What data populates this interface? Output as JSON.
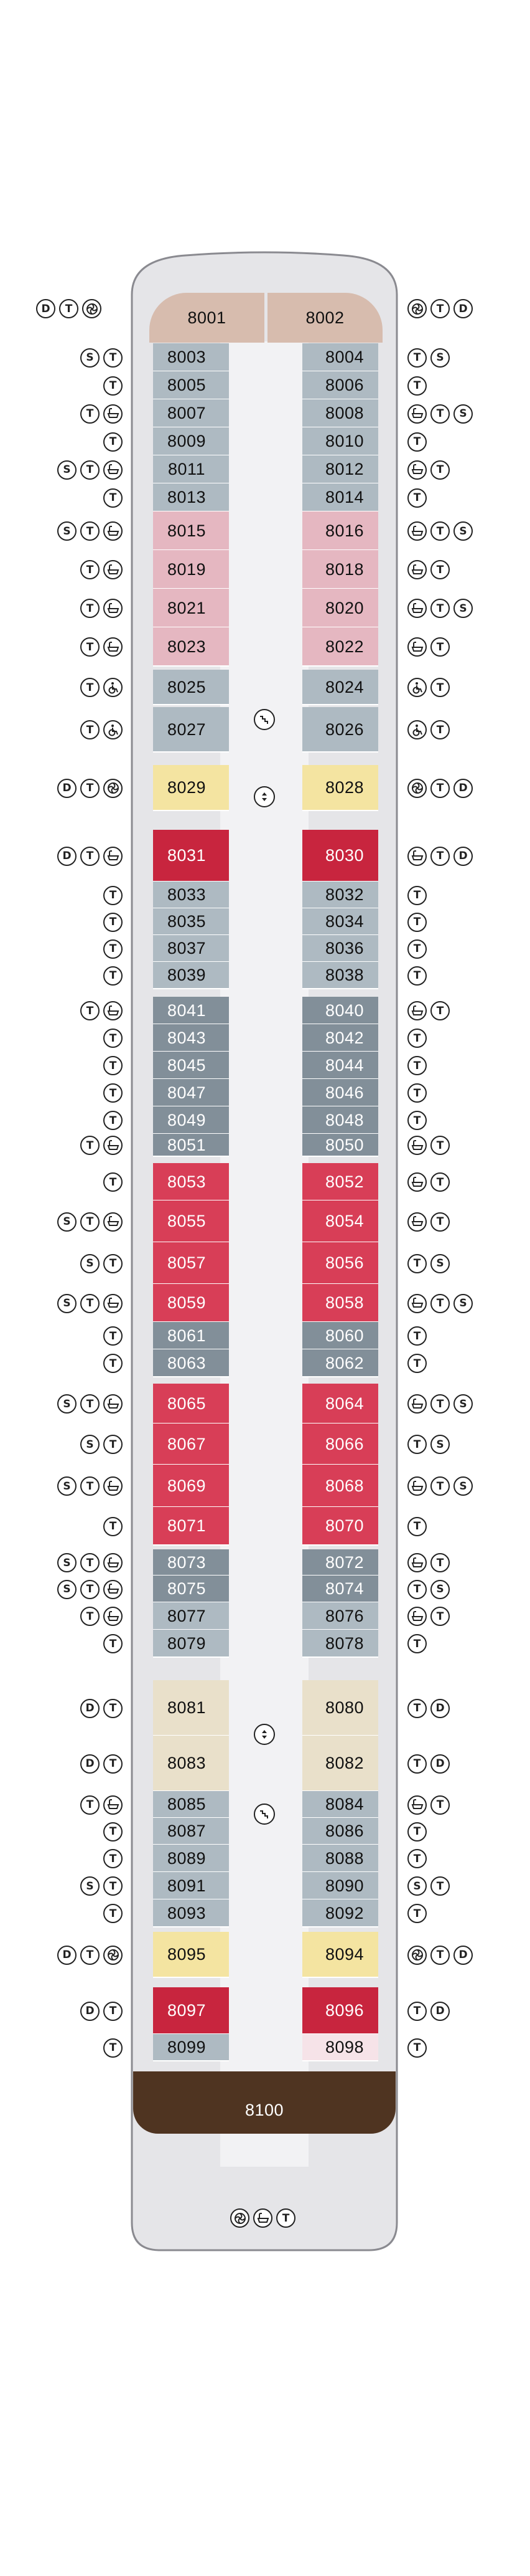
{
  "colors": {
    "hull_fill": "#e5e5e8",
    "hull_outline": "#8a8a90",
    "corridor": "#f2f2f4",
    "owners_suite": "#d7bcae",
    "superior_veranda": "#aebac2",
    "deluxe_veranda": "#e5b7c1",
    "penthouse": "#f4e4a1",
    "concierge": "#c8253e",
    "veranda_gray": "#828f99",
    "veranda_red": "#d83e57",
    "sand": "#e9e0ca",
    "light_pink": "#f6e3e8",
    "brown": "#4f3421",
    "text_dark": "#111111",
    "text_light": "#ffffff"
  },
  "icon_legend": {
    "D": "D",
    "S": "S",
    "T": "T"
  },
  "cabins_left": [
    {
      "num": "8003",
      "color": "superior_veranda",
      "icons": [
        "S",
        "T"
      ]
    },
    {
      "num": "8005",
      "color": "superior_veranda",
      "icons": [
        "T"
      ]
    },
    {
      "num": "8007",
      "color": "superior_veranda",
      "icons": [
        "T",
        "bathtub"
      ]
    },
    {
      "num": "8009",
      "color": "superior_veranda",
      "icons": [
        "T"
      ]
    },
    {
      "num": "8011",
      "color": "superior_veranda",
      "icons": [
        "S",
        "T",
        "bathtub"
      ]
    },
    {
      "num": "8013",
      "color": "superior_veranda",
      "icons": [
        "T"
      ]
    },
    {
      "num": "8015",
      "color": "deluxe_veranda",
      "icons": [
        "S",
        "T",
        "bathtub"
      ]
    },
    {
      "num": "8019",
      "color": "deluxe_veranda",
      "icons": [
        "T",
        "bathtub"
      ]
    },
    {
      "num": "8021",
      "color": "deluxe_veranda",
      "icons": [
        "T",
        "bathtub"
      ]
    },
    {
      "num": "8023",
      "color": "deluxe_veranda",
      "icons": [
        "T",
        "bathtub"
      ]
    },
    {
      "num": "8025",
      "color": "superior_veranda",
      "icons": [
        "T",
        "wheelchair"
      ]
    },
    {
      "num": "8027",
      "color": "superior_veranda",
      "icons": [
        "T",
        "wheelchair"
      ]
    },
    {
      "num": "8029",
      "color": "penthouse",
      "icons": [
        "D",
        "T",
        "shower"
      ]
    },
    {
      "num": "8031",
      "color": "concierge",
      "icons": [
        "D",
        "T",
        "bathtub"
      ]
    },
    {
      "num": "8033",
      "color": "superior_veranda",
      "icons": [
        "T"
      ]
    },
    {
      "num": "8035",
      "color": "superior_veranda",
      "icons": [
        "T"
      ]
    },
    {
      "num": "8037",
      "color": "superior_veranda",
      "icons": [
        "T"
      ]
    },
    {
      "num": "8039",
      "color": "superior_veranda",
      "icons": [
        "T"
      ]
    },
    {
      "num": "8041",
      "color": "veranda_gray",
      "icons": [
        "T",
        "bathtub"
      ]
    },
    {
      "num": "8043",
      "color": "veranda_gray",
      "icons": [
        "T"
      ]
    },
    {
      "num": "8045",
      "color": "veranda_gray",
      "icons": [
        "T"
      ]
    },
    {
      "num": "8047",
      "color": "veranda_gray",
      "icons": [
        "T"
      ]
    },
    {
      "num": "8049",
      "color": "veranda_gray",
      "icons": [
        "T"
      ]
    },
    {
      "num": "8051",
      "color": "veranda_gray",
      "icons": [
        "T",
        "bathtub"
      ]
    },
    {
      "num": "8053",
      "color": "veranda_red",
      "icons": [
        "T"
      ]
    },
    {
      "num": "8055",
      "color": "veranda_red",
      "icons": [
        "S",
        "T",
        "bathtub"
      ]
    },
    {
      "num": "8057",
      "color": "veranda_red",
      "icons": [
        "S",
        "T"
      ]
    },
    {
      "num": "8059",
      "color": "veranda_red",
      "icons": [
        "S",
        "T",
        "bathtub"
      ]
    },
    {
      "num": "8061",
      "color": "veranda_gray",
      "icons": [
        "T"
      ]
    },
    {
      "num": "8063",
      "color": "veranda_gray",
      "icons": [
        "T"
      ]
    },
    {
      "num": "8065",
      "color": "veranda_red",
      "icons": [
        "S",
        "T",
        "bathtub"
      ]
    },
    {
      "num": "8067",
      "color": "veranda_red",
      "icons": [
        "S",
        "T"
      ]
    },
    {
      "num": "8069",
      "color": "veranda_red",
      "icons": [
        "S",
        "T",
        "bathtub"
      ]
    },
    {
      "num": "8071",
      "color": "veranda_red",
      "icons": [
        "T"
      ]
    },
    {
      "num": "8073",
      "color": "veranda_gray",
      "icons": [
        "S",
        "T",
        "bathtub"
      ]
    },
    {
      "num": "8075",
      "color": "veranda_gray",
      "icons": [
        "S",
        "T",
        "bathtub"
      ]
    },
    {
      "num": "8077",
      "color": "superior_veranda",
      "icons": [
        "T",
        "bathtub"
      ]
    },
    {
      "num": "8079",
      "color": "superior_veranda",
      "icons": [
        "T"
      ]
    },
    {
      "num": "8081",
      "color": "sand",
      "icons": [
        "D",
        "T"
      ]
    },
    {
      "num": "8083",
      "color": "sand",
      "icons": [
        "D",
        "T"
      ]
    },
    {
      "num": "8085",
      "color": "superior_veranda",
      "icons": [
        "T",
        "bathtub"
      ]
    },
    {
      "num": "8087",
      "color": "superior_veranda",
      "icons": [
        "T"
      ]
    },
    {
      "num": "8089",
      "color": "superior_veranda",
      "icons": [
        "T"
      ]
    },
    {
      "num": "8091",
      "color": "superior_veranda",
      "icons": [
        "S",
        "T"
      ]
    },
    {
      "num": "8093",
      "color": "superior_veranda",
      "icons": [
        "T"
      ]
    },
    {
      "num": "8095",
      "color": "penthouse",
      "icons": [
        "D",
        "T",
        "shower"
      ]
    },
    {
      "num": "8097",
      "color": "concierge",
      "icons": [
        "D",
        "T"
      ]
    },
    {
      "num": "8099",
      "color": "superior_veranda",
      "icons": [
        "T"
      ]
    }
  ],
  "cabins_right": [
    {
      "num": "8004",
      "color": "superior_veranda",
      "icons": [
        "T",
        "S"
      ]
    },
    {
      "num": "8006",
      "color": "superior_veranda",
      "icons": [
        "T"
      ]
    },
    {
      "num": "8008",
      "color": "superior_veranda",
      "icons": [
        "bathtub",
        "T",
        "S"
      ]
    },
    {
      "num": "8010",
      "color": "superior_veranda",
      "icons": [
        "T"
      ]
    },
    {
      "num": "8012",
      "color": "superior_veranda",
      "icons": [
        "bathtub",
        "T"
      ]
    },
    {
      "num": "8014",
      "color": "superior_veranda",
      "icons": [
        "T"
      ]
    },
    {
      "num": "8016",
      "color": "deluxe_veranda",
      "icons": [
        "bathtub",
        "T",
        "S"
      ]
    },
    {
      "num": "8018",
      "color": "deluxe_veranda",
      "icons": [
        "bathtub",
        "T"
      ]
    },
    {
      "num": "8020",
      "color": "deluxe_veranda",
      "icons": [
        "bathtub",
        "T",
        "S"
      ]
    },
    {
      "num": "8022",
      "color": "deluxe_veranda",
      "icons": [
        "bathtub",
        "T"
      ]
    },
    {
      "num": "8024",
      "color": "superior_veranda",
      "icons": [
        "wheelchair",
        "T"
      ]
    },
    {
      "num": "8026",
      "color": "superior_veranda",
      "icons": [
        "wheelchair",
        "T"
      ]
    },
    {
      "num": "8028",
      "color": "penthouse",
      "icons": [
        "shower",
        "T",
        "D"
      ]
    },
    {
      "num": "8030",
      "color": "concierge",
      "icons": [
        "bathtub",
        "T",
        "D"
      ]
    },
    {
      "num": "8032",
      "color": "superior_veranda",
      "icons": [
        "T"
      ]
    },
    {
      "num": "8034",
      "color": "superior_veranda",
      "icons": [
        "T"
      ]
    },
    {
      "num": "8036",
      "color": "superior_veranda",
      "icons": [
        "T"
      ]
    },
    {
      "num": "8038",
      "color": "superior_veranda",
      "icons": [
        "T"
      ]
    },
    {
      "num": "8040",
      "color": "veranda_gray",
      "icons": [
        "bathtub",
        "T"
      ]
    },
    {
      "num": "8042",
      "color": "veranda_gray",
      "icons": [
        "T"
      ]
    },
    {
      "num": "8044",
      "color": "veranda_gray",
      "icons": [
        "T"
      ]
    },
    {
      "num": "8046",
      "color": "veranda_gray",
      "icons": [
        "T"
      ]
    },
    {
      "num": "8048",
      "color": "veranda_gray",
      "icons": [
        "T"
      ]
    },
    {
      "num": "8050",
      "color": "veranda_gray",
      "icons": [
        "bathtub",
        "T"
      ]
    },
    {
      "num": "8052",
      "color": "veranda_red",
      "icons": [
        "bathtub",
        "T"
      ]
    },
    {
      "num": "8054",
      "color": "veranda_red",
      "icons": [
        "bathtub",
        "T"
      ]
    },
    {
      "num": "8056",
      "color": "veranda_red",
      "icons": [
        "T",
        "S"
      ]
    },
    {
      "num": "8058",
      "color": "veranda_red",
      "icons": [
        "bathtub",
        "T",
        "S"
      ]
    },
    {
      "num": "8060",
      "color": "veranda_gray",
      "icons": [
        "T"
      ]
    },
    {
      "num": "8062",
      "color": "veranda_gray",
      "icons": [
        "T"
      ]
    },
    {
      "num": "8064",
      "color": "veranda_red",
      "icons": [
        "bathtub",
        "T",
        "S"
      ]
    },
    {
      "num": "8066",
      "color": "veranda_red",
      "icons": [
        "T",
        "S"
      ]
    },
    {
      "num": "8068",
      "color": "veranda_red",
      "icons": [
        "bathtub",
        "T",
        "S"
      ]
    },
    {
      "num": "8070",
      "color": "veranda_red",
      "icons": [
        "T"
      ]
    },
    {
      "num": "8072",
      "color": "veranda_gray",
      "icons": [
        "bathtub",
        "T"
      ]
    },
    {
      "num": "8074",
      "color": "veranda_gray",
      "icons": [
        "T",
        "S"
      ]
    },
    {
      "num": "8076",
      "color": "superior_veranda",
      "icons": [
        "bathtub",
        "T"
      ]
    },
    {
      "num": "8078",
      "color": "superior_veranda",
      "icons": [
        "T"
      ]
    },
    {
      "num": "8080",
      "color": "sand",
      "icons": [
        "T",
        "D"
      ]
    },
    {
      "num": "8082",
      "color": "sand",
      "icons": [
        "T",
        "D"
      ]
    },
    {
      "num": "8084",
      "color": "superior_veranda",
      "icons": [
        "bathtub",
        "T"
      ]
    },
    {
      "num": "8086",
      "color": "superior_veranda",
      "icons": [
        "T"
      ]
    },
    {
      "num": "8088",
      "color": "superior_veranda",
      "icons": [
        "T"
      ]
    },
    {
      "num": "8090",
      "color": "superior_veranda",
      "icons": [
        "S",
        "T"
      ]
    },
    {
      "num": "8092",
      "color": "superior_veranda",
      "icons": [
        "T"
      ]
    },
    {
      "num": "8094",
      "color": "penthouse",
      "icons": [
        "shower",
        "T",
        "D"
      ]
    },
    {
      "num": "8096",
      "color": "concierge",
      "icons": [
        "T",
        "D"
      ]
    },
    {
      "num": "8098",
      "color": "light_pink",
      "icons": [
        "T"
      ]
    }
  ],
  "forward_suites": [
    {
      "num": "8001",
      "color": "owners_suite",
      "icons": [
        "D",
        "T",
        "shower"
      ]
    },
    {
      "num": "8002",
      "color": "owners_suite",
      "icons": [
        "shower",
        "T",
        "D"
      ]
    }
  ],
  "aft_suite": {
    "num": "8100",
    "color": "brown",
    "icons": [
      "shower",
      "bathtub",
      "T"
    ]
  }
}
